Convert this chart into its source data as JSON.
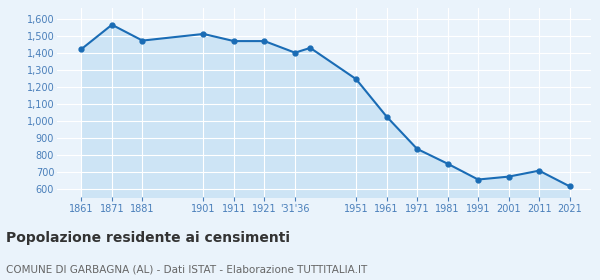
{
  "years": [
    1861,
    1871,
    1881,
    1901,
    1911,
    1921,
    1931,
    1936,
    1951,
    1961,
    1971,
    1981,
    1991,
    2001,
    2011,
    2021
  ],
  "population": [
    1421,
    1564,
    1471,
    1510,
    1468,
    1468,
    1400,
    1428,
    1245,
    1025,
    835,
    748,
    655,
    672,
    707,
    615
  ],
  "line_color": "#1a6cb5",
  "fill_color": "#cde4f5",
  "marker_color": "#1a6cb5",
  "bg_color": "#eaf3fb",
  "grid_color": "#ffffff",
  "title": "Popolazione residente ai censimenti",
  "subtitle": "COMUNE DI GARBAGNA (AL) - Dati ISTAT - Elaborazione TUTTITALIA.IT",
  "title_fontsize": 10,
  "subtitle_fontsize": 7.5,
  "ylim": [
    550,
    1660
  ],
  "yticks": [
    600,
    700,
    800,
    900,
    1000,
    1100,
    1200,
    1300,
    1400,
    1500,
    1600
  ],
  "tick_label_color": "#4a7fba",
  "x_tick_positions": [
    1861,
    1871,
    1881,
    1901,
    1911,
    1921,
    1931,
    1951,
    1961,
    1971,
    1981,
    1991,
    2001,
    2011,
    2021
  ],
  "x_tick_labels": [
    "1861",
    "1871",
    "1881",
    "1901",
    "1911",
    "1921",
    "'31'36",
    "1951",
    "1961",
    "1971",
    "1981",
    "1991",
    "2001",
    "2011",
    "2021"
  ],
  "xlim_left": 1853,
  "xlim_right": 2028
}
